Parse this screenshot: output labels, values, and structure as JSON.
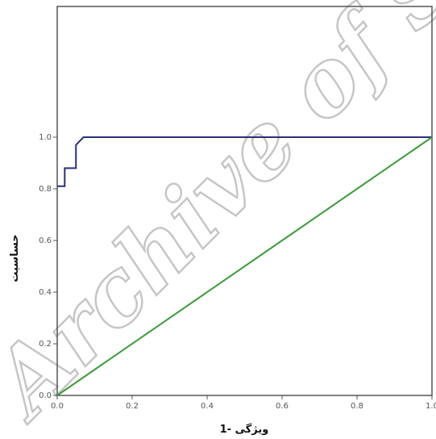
{
  "chart_data": {
    "type": "line",
    "xlabel": "1- ویژگی",
    "ylabel": "حساسیت",
    "xlim": [
      0,
      1
    ],
    "ylim": [
      0,
      1
    ],
    "x_ticks": [
      "0.0",
      "0.2",
      "0.4",
      "0.6",
      "0.8",
      "1.0"
    ],
    "y_ticks": [
      "0.0",
      "0.2",
      "0.4",
      "0.6",
      "0.8",
      "1.0"
    ],
    "grid": false,
    "series": [
      {
        "color": "#2b2f7a",
        "style": "step",
        "points": [
          [
            0.0,
            0.81
          ],
          [
            0.02,
            0.81
          ],
          [
            0.02,
            0.88
          ],
          [
            0.05,
            0.88
          ],
          [
            0.05,
            0.97
          ],
          [
            0.07,
            1.0
          ],
          [
            1.0,
            1.0
          ]
        ]
      },
      {
        "color": "#3a9a3a",
        "style": "reference",
        "points": [
          [
            0.0,
            0.0
          ],
          [
            1.0,
            1.0
          ]
        ]
      }
    ]
  },
  "watermark": "Archive of SID"
}
